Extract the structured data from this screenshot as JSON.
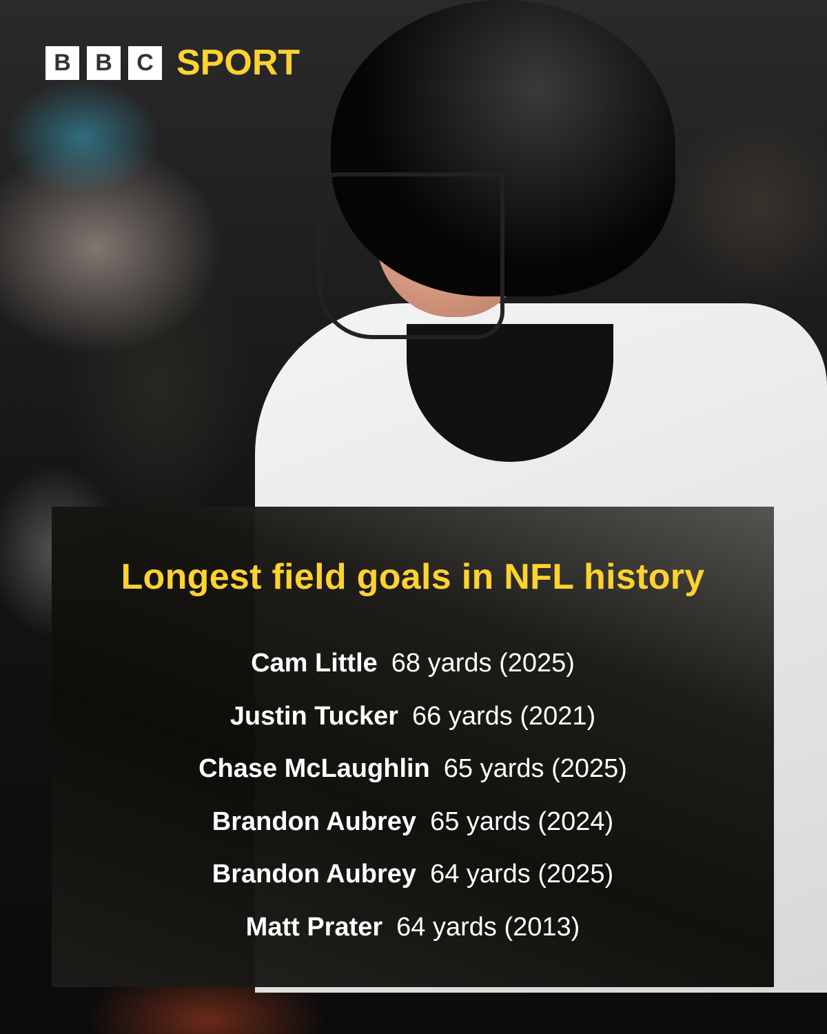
{
  "brand": {
    "letters": [
      "B",
      "B",
      "C"
    ],
    "section": "SPORT",
    "accent": "#FFD230"
  },
  "title": "Longest field goals in NFL history",
  "rows": [
    {
      "name": "Cam Little",
      "detail": "68 yards (2025)"
    },
    {
      "name": "Justin Tucker",
      "detail": "66 yards (2021)"
    },
    {
      "name": "Chase McLaughlin",
      "detail": "65 yards (2025)"
    },
    {
      "name": "Brandon Aubrey",
      "detail": "65 yards (2024)"
    },
    {
      "name": "Brandon Aubrey",
      "detail": "64 yards (2025)"
    },
    {
      "name": "Matt Prater",
      "detail": "64 yards (2013)"
    }
  ]
}
